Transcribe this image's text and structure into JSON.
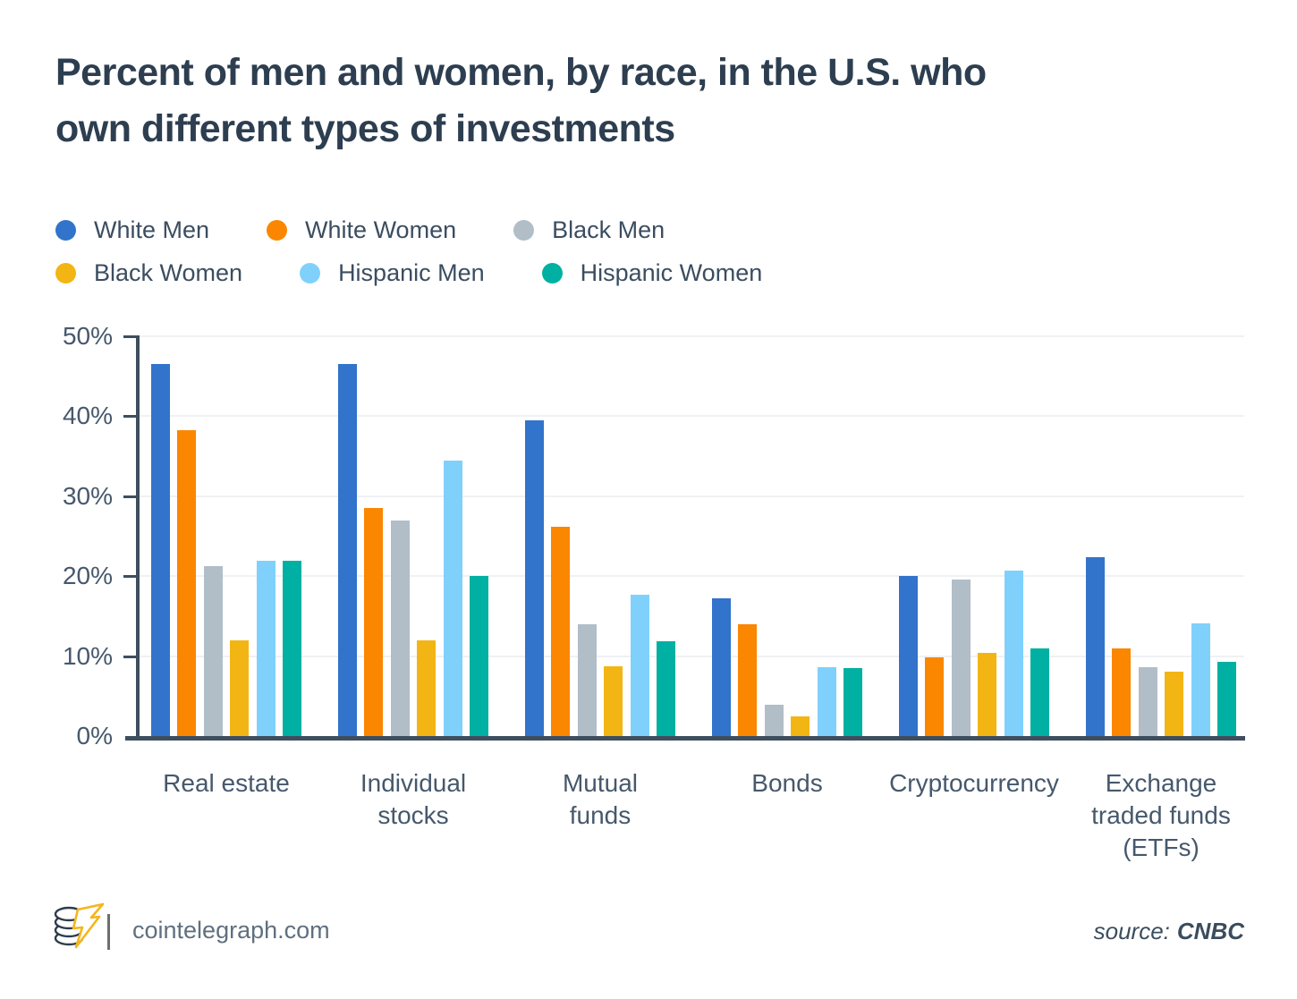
{
  "title": "Percent of men and women, by race, in the U.S. who own different types of investments",
  "title_lines": [
    "Percent of men and women, by race, in the U.S. who",
    "own different types of investments"
  ],
  "legend": {
    "rows": [
      [
        0,
        1,
        2
      ],
      [
        3,
        4,
        5
      ]
    ]
  },
  "chart_data": {
    "type": "bar",
    "title": "Percent of men and women, by race, in the U.S. who own different types of investments",
    "categories": [
      "Real estate",
      "Individual stocks",
      "Mutual funds",
      "Bonds",
      "Cryptocurrency",
      "Exchange traded funds (ETFs)"
    ],
    "categories_multiline": [
      [
        "Real estate"
      ],
      [
        "Individual",
        "stocks"
      ],
      [
        "Mutual",
        "funds"
      ],
      [
        "Bonds"
      ],
      [
        "Cryptocurrency"
      ],
      [
        "Exchange",
        "traded funds",
        "(ETFs)"
      ]
    ],
    "series": [
      {
        "name": "White Men",
        "color": "#3273cb",
        "values": [
          46.5,
          46.5,
          39.5,
          17.2,
          20.0,
          22.4
        ]
      },
      {
        "name": "White Women",
        "color": "#fb8600",
        "values": [
          38.2,
          28.5,
          26.2,
          14.0,
          9.8,
          11.0
        ]
      },
      {
        "name": "Black Men",
        "color": "#b1bec8",
        "values": [
          21.3,
          27.0,
          14.0,
          3.9,
          19.6,
          8.6
        ]
      },
      {
        "name": "Black Women",
        "color": "#f3b514",
        "values": [
          12.0,
          12.0,
          8.7,
          2.5,
          10.4,
          8.1
        ]
      },
      {
        "name": "Hispanic Men",
        "color": "#7fd1fc",
        "values": [
          21.9,
          34.5,
          17.7,
          8.6,
          20.7,
          14.1
        ]
      },
      {
        "name": "Hispanic Women",
        "color": "#00b0a2",
        "values": [
          21.9,
          20.0,
          11.9,
          8.5,
          11.0,
          9.3
        ]
      }
    ],
    "xlabel": "",
    "ylabel": "",
    "ylim": [
      0,
      50
    ],
    "ytick_interval": 10,
    "yticks": [
      "0%",
      "10%",
      "20%",
      "30%",
      "40%",
      "50%"
    ],
    "grid": true,
    "legend_position": "top-left"
  },
  "colors": {
    "title": "#2d3e50",
    "legend_text": "#3b4d60",
    "tick_label": "#46586c",
    "axis": "#3e4e5e",
    "grid": "#f0f1f4",
    "footer_text": "#5f707f",
    "source_text": "#3a4d5e",
    "logo_dark": "#2e3d4e",
    "logo_gold": "#f5b51c"
  },
  "footer": {
    "site": "cointelegraph.com",
    "source_label": "source:",
    "source_value": "CNBC",
    "logo": "cointelegraph-logo"
  }
}
